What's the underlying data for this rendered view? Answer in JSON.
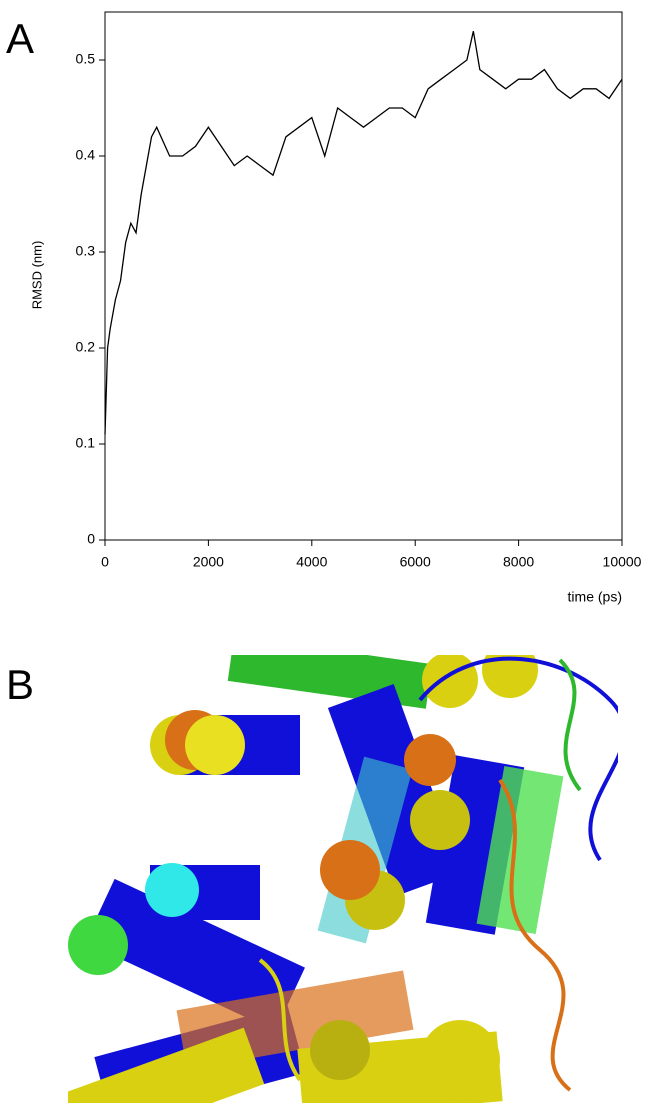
{
  "panel_labels": [
    "A",
    "B"
  ],
  "chart_data": {
    "type": "line",
    "xlabel": "time (ps)",
    "ylabel": "RMSD (nm)",
    "x": [
      0,
      50,
      100,
      200,
      300,
      400,
      500,
      600,
      700,
      800,
      900,
      1000,
      1250,
      1500,
      1750,
      2000,
      2250,
      2500,
      2750,
      3000,
      3250,
      3500,
      3750,
      4000,
      4250,
      4500,
      4750,
      5000,
      5250,
      5500,
      5750,
      6000,
      6250,
      6500,
      6750,
      7000,
      7125,
      7250,
      7500,
      7750,
      8000,
      8250,
      8500,
      8750,
      9000,
      9250,
      9500,
      9750,
      10000
    ],
    "series": [
      {
        "color": "#000000",
        "values": [
          0.11,
          0.2,
          0.22,
          0.25,
          0.27,
          0.31,
          0.33,
          0.32,
          0.36,
          0.39,
          0.42,
          0.43,
          0.4,
          0.4,
          0.41,
          0.43,
          0.41,
          0.39,
          0.4,
          0.39,
          0.38,
          0.42,
          0.43,
          0.44,
          0.4,
          0.45,
          0.44,
          0.43,
          0.44,
          0.45,
          0.45,
          0.44,
          0.47,
          0.48,
          0.49,
          0.5,
          0.53,
          0.49,
          0.48,
          0.47,
          0.48,
          0.48,
          0.49,
          0.47,
          0.46,
          0.47,
          0.47,
          0.46,
          0.48
        ]
      }
    ],
    "xlim": [
      0,
      10000
    ],
    "xticks": [
      0,
      2000,
      4000,
      6000,
      8000,
      10000
    ],
    "ylim": [
      0,
      0.55
    ],
    "yticks": [
      0,
      0.1,
      0.2,
      0.3,
      0.4,
      0.5
    ]
  }
}
